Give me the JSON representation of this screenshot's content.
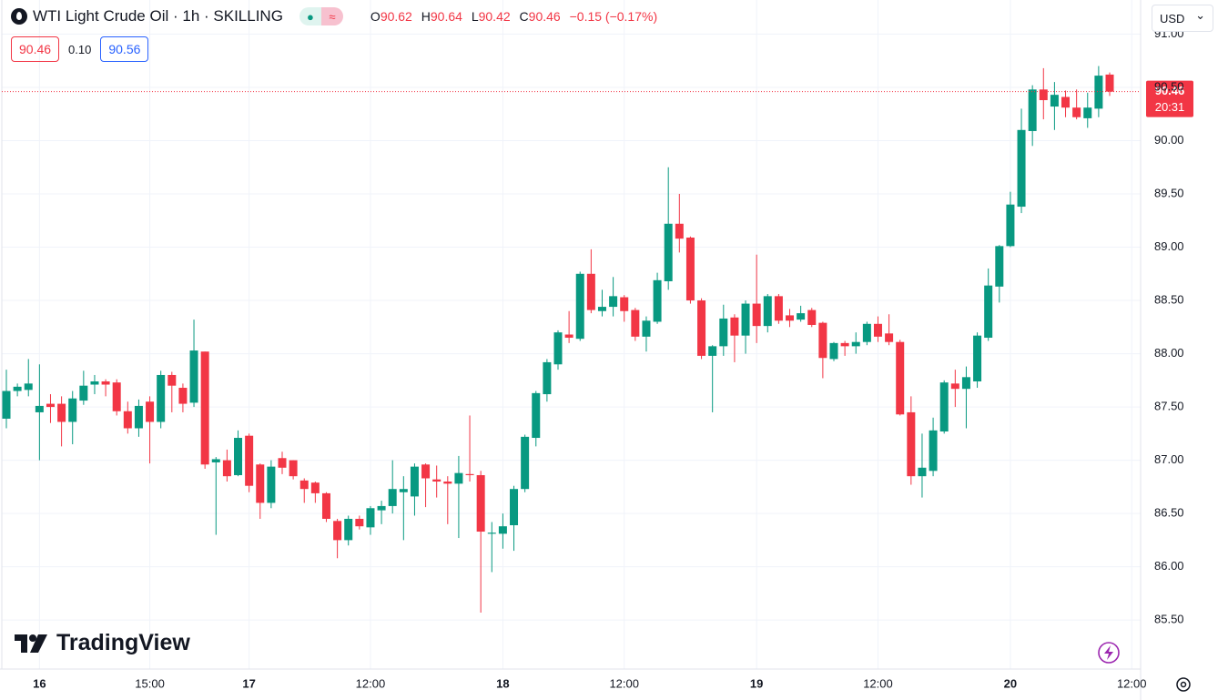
{
  "chart_data": {
    "type": "candlestick",
    "title": "WTI Light Crude Oil · 1h · SKILLING",
    "categories": [
      null,
      null,
      null,
      "16",
      null,
      null,
      null,
      null,
      null,
      null,
      null,
      null,
      null,
      "15:00",
      null,
      null,
      null,
      null,
      null,
      null,
      null,
      null,
      "17",
      null,
      null,
      null,
      null,
      null,
      null,
      null,
      null,
      null,
      null,
      "12:00",
      null,
      null,
      null,
      null,
      null,
      null,
      null,
      null,
      null,
      null,
      null,
      "18",
      null,
      null,
      null,
      null,
      null,
      null,
      null,
      null,
      null,
      null,
      "12:00",
      null,
      null,
      null,
      null,
      null,
      null,
      null,
      null,
      null,
      null,
      null,
      "19",
      null,
      null,
      null,
      null,
      null,
      null,
      null,
      null,
      null,
      null,
      "12:00",
      null,
      null,
      null,
      null,
      null,
      null,
      null,
      null,
      null,
      null,
      null,
      "20",
      null,
      null,
      null,
      null,
      null,
      null,
      null,
      null,
      null,
      null,
      "12:00"
    ],
    "open": [
      87.39,
      87.65,
      87.66,
      87.45,
      87.53,
      87.53,
      87.36,
      87.56,
      87.71,
      87.74,
      87.73,
      87.46,
      87.3,
      87.55,
      87.36,
      87.8,
      87.68,
      87.54,
      88.02,
      86.98,
      87.0,
      86.86,
      87.23,
      86.96,
      86.6,
      87.02,
      87.0,
      86.81,
      86.79,
      86.69,
      86.43,
      86.25,
      86.45,
      86.37,
      86.53,
      86.57,
      86.7,
      86.66,
      86.96,
      86.82,
      86.8,
      86.78,
      86.87,
      86.86,
      86.31,
      86.31,
      86.39,
      86.73,
      87.21,
      87.62,
      87.9,
      88.18,
      88.14,
      88.75,
      88.4,
      88.44,
      88.53,
      88.41,
      88.16,
      88.3,
      88.68,
      89.22,
      89.09,
      88.5,
      87.98,
      88.07,
      88.34,
      88.17,
      88.47,
      88.26,
      88.54,
      88.36,
      88.32,
      88.41,
      88.29,
      87.95,
      88.1,
      88.07,
      88.11,
      88.28,
      88.19,
      88.11,
      87.45,
      86.85,
      86.9,
      87.27,
      87.72,
      87.67,
      87.74,
      88.15,
      88.63,
      89.01,
      89.38,
      90.09,
      90.48,
      90.32,
      90.41,
      90.31,
      90.21,
      90.3,
      90.62,
      null,
      null
    ],
    "high": [
      87.85,
      87.72,
      87.95,
      87.9,
      87.62,
      87.6,
      87.65,
      87.84,
      87.8,
      87.76,
      87.76,
      87.55,
      87.57,
      87.6,
      87.84,
      87.83,
      87.72,
      88.32,
      88.02,
      87.03,
      87.1,
      87.28,
      87.25,
      86.97,
      87.0,
      87.08,
      87.0,
      86.83,
      86.8,
      86.7,
      86.45,
      86.48,
      86.48,
      86.57,
      86.62,
      87.0,
      86.85,
      86.97,
      86.97,
      86.95,
      86.85,
      87.04,
      87.42,
      86.9,
      86.42,
      86.5,
      86.76,
      87.24,
      87.65,
      87.95,
      88.22,
      88.4,
      88.77,
      88.98,
      88.6,
      88.72,
      88.55,
      88.43,
      88.35,
      88.76,
      89.75,
      89.5,
      89.1,
      88.52,
      88.08,
      88.46,
      88.37,
      88.5,
      88.93,
      88.56,
      88.56,
      88.42,
      88.45,
      88.43,
      88.3,
      88.11,
      88.12,
      88.2,
      88.3,
      88.35,
      88.37,
      88.13,
      87.6,
      87.25,
      87.4,
      87.75,
      87.85,
      87.88,
      88.2,
      88.8,
      89.02,
      89.52,
      90.3,
      90.52,
      90.68,
      90.55,
      90.47,
      90.48,
      90.45,
      90.7,
      90.64,
      null,
      null
    ],
    "low": [
      87.3,
      87.6,
      87.6,
      87.0,
      87.35,
      87.13,
      87.15,
      87.52,
      87.62,
      87.6,
      87.42,
      87.25,
      87.22,
      86.97,
      87.3,
      87.45,
      87.45,
      87.5,
      86.92,
      86.3,
      86.8,
      86.85,
      86.7,
      86.45,
      86.55,
      86.87,
      86.82,
      86.6,
      86.6,
      86.42,
      86.08,
      86.2,
      86.35,
      86.3,
      86.4,
      86.5,
      86.25,
      86.48,
      86.56,
      86.65,
      86.4,
      86.27,
      86.8,
      85.57,
      85.95,
      86.17,
      86.15,
      86.7,
      87.13,
      87.55,
      87.85,
      88.1,
      88.12,
      88.38,
      88.35,
      88.35,
      88.3,
      88.12,
      88.02,
      88.28,
      88.6,
      88.95,
      88.47,
      87.95,
      87.45,
      87.98,
      87.92,
      88.0,
      88.1,
      88.2,
      88.28,
      88.25,
      88.3,
      88.25,
      87.77,
      87.93,
      87.98,
      88.0,
      88.08,
      88.11,
      88.08,
      87.42,
      86.77,
      86.65,
      86.85,
      87.25,
      87.5,
      87.3,
      87.68,
      88.12,
      88.48,
      89.0,
      89.32,
      89.95,
      90.2,
      90.1,
      90.22,
      90.2,
      90.12,
      90.22,
      90.42,
      null,
      null
    ],
    "close": [
      87.65,
      87.69,
      87.72,
      87.51,
      87.5,
      87.36,
      87.58,
      87.7,
      87.74,
      87.71,
      87.46,
      87.3,
      87.51,
      87.36,
      87.8,
      87.7,
      87.53,
      88.03,
      86.96,
      87.01,
      86.85,
      87.21,
      86.76,
      86.6,
      86.94,
      86.93,
      86.85,
      86.73,
      86.69,
      86.45,
      86.25,
      86.45,
      86.38,
      86.55,
      86.57,
      86.73,
      86.73,
      86.94,
      86.83,
      86.8,
      86.78,
      86.88,
      86.86,
      86.33,
      86.32,
      86.38,
      86.73,
      87.22,
      87.63,
      87.92,
      88.2,
      88.15,
      88.75,
      88.41,
      88.44,
      88.54,
      88.4,
      88.16,
      88.31,
      88.69,
      89.22,
      89.08,
      88.5,
      87.98,
      88.07,
      88.33,
      88.17,
      88.47,
      88.26,
      88.54,
      88.31,
      88.31,
      88.38,
      88.27,
      87.96,
      88.1,
      88.07,
      88.11,
      88.28,
      88.16,
      88.11,
      87.43,
      86.85,
      86.93,
      87.28,
      87.73,
      87.67,
      87.78,
      88.17,
      88.64,
      89.01,
      89.4,
      90.1,
      90.48,
      90.38,
      90.43,
      90.31,
      90.22,
      90.31,
      90.61,
      90.46,
      null,
      null
    ],
    "up_color": "#089981",
    "down_color": "#f23645",
    "ylim": [
      85.04,
      91.32
    ],
    "yticks": [
      {
        "value": 85.5,
        "label": "85.50"
      },
      {
        "value": 86,
        "label": "86.00"
      },
      {
        "value": 86.5,
        "label": "86.50"
      },
      {
        "value": 87,
        "label": "87.00"
      },
      {
        "value": 87.5,
        "label": "87.50"
      },
      {
        "value": 88,
        "label": "88.00"
      },
      {
        "value": 88.5,
        "label": "88.50"
      },
      {
        "value": 89,
        "label": "89.00"
      },
      {
        "value": 89.5,
        "label": "89.50"
      },
      {
        "value": 90,
        "label": "90.00"
      },
      {
        "value": 90.5,
        "label": "90.50"
      },
      {
        "value": 91,
        "label": "91.00"
      }
    ],
    "grid": true
  },
  "header": {
    "ohlc_labels": [
      "O",
      "H",
      "L",
      "C"
    ],
    "change": "−0.15 (−0.17%)",
    "bid": "90.46",
    "spread": "0.10",
    "ask": "90.56",
    "countdown": "20:31",
    "currency": "USD",
    "brand": "TradingView"
  }
}
